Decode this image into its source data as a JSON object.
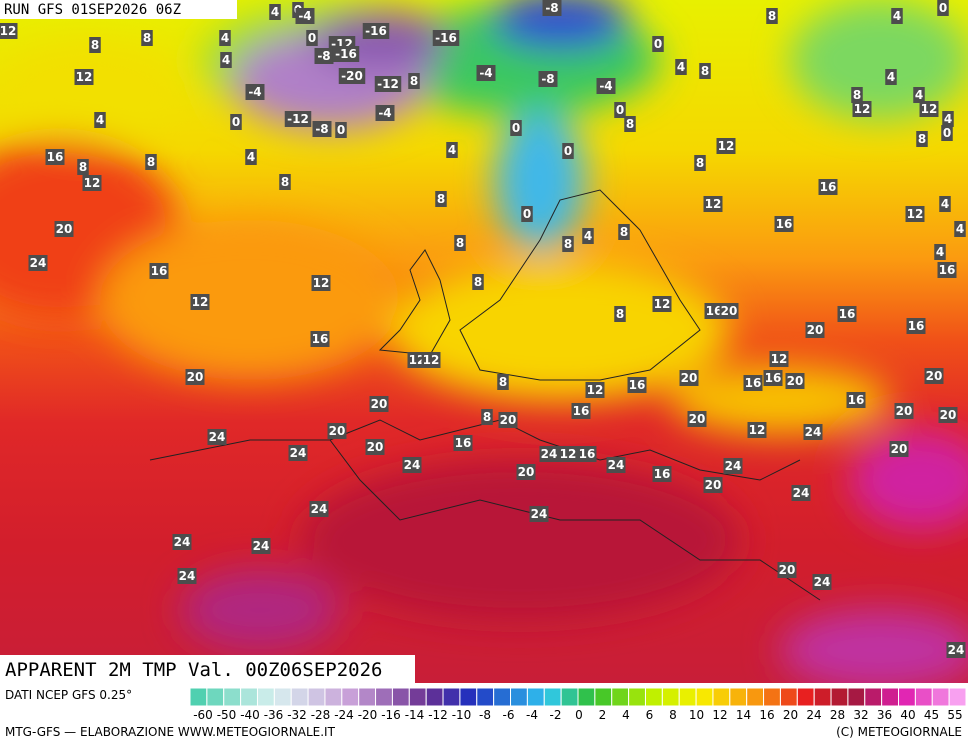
{
  "header": {
    "run": "RUN GFS 01SEP2026 06Z"
  },
  "map": {
    "title": "APPARENT 2M TMP Val. 00Z06SEP2026",
    "labels": [
      4,
      0,
      -4,
      -8,
      8,
      4,
      0,
      12,
      8,
      8,
      4,
      0,
      -12,
      -16,
      -16,
      -8,
      -16,
      0,
      4,
      12,
      -20,
      -12,
      8,
      -4,
      -8,
      -4,
      4,
      8,
      8,
      4,
      4,
      12,
      12,
      4,
      -4,
      0,
      -12,
      -8,
      0,
      -4,
      0,
      8,
      0,
      4,
      4,
      0,
      12,
      8,
      0,
      16,
      8,
      12,
      8,
      4,
      8,
      8,
      16,
      8,
      12,
      0,
      12,
      4,
      20,
      16,
      4,
      8,
      8,
      4,
      8,
      4,
      16,
      24,
      16,
      12,
      8,
      12,
      12,
      16,
      20,
      8,
      20,
      16,
      16,
      16,
      12,
      12,
      12,
      20,
      8,
      12,
      16,
      20,
      16,
      16,
      20,
      20,
      20,
      16,
      8,
      20,
      20,
      16,
      20,
      20,
      24,
      20,
      16,
      12,
      24,
      24,
      20,
      24,
      24,
      12,
      16,
      24,
      20,
      20,
      16,
      24,
      20,
      24,
      24,
      24,
      24,
      24,
      24,
      20,
      24,
      24
    ]
  },
  "legend": {
    "source": "DATI NCEP GFS 0.25°",
    "ticks": [
      -60,
      -50,
      -40,
      -36,
      -32,
      -28,
      -24,
      -20,
      -16,
      -14,
      -12,
      -10,
      -8,
      -6,
      -4,
      -2,
      0,
      2,
      4,
      6,
      8,
      10,
      12,
      14,
      16,
      20,
      24,
      28,
      32,
      36,
      40,
      45,
      55
    ]
  },
  "footer": {
    "credit": "MTG-GFS — ELABORAZIONE WWW.METEOGIORNALE.IT",
    "copyright": "(C) METEOGIORNALE"
  }
}
